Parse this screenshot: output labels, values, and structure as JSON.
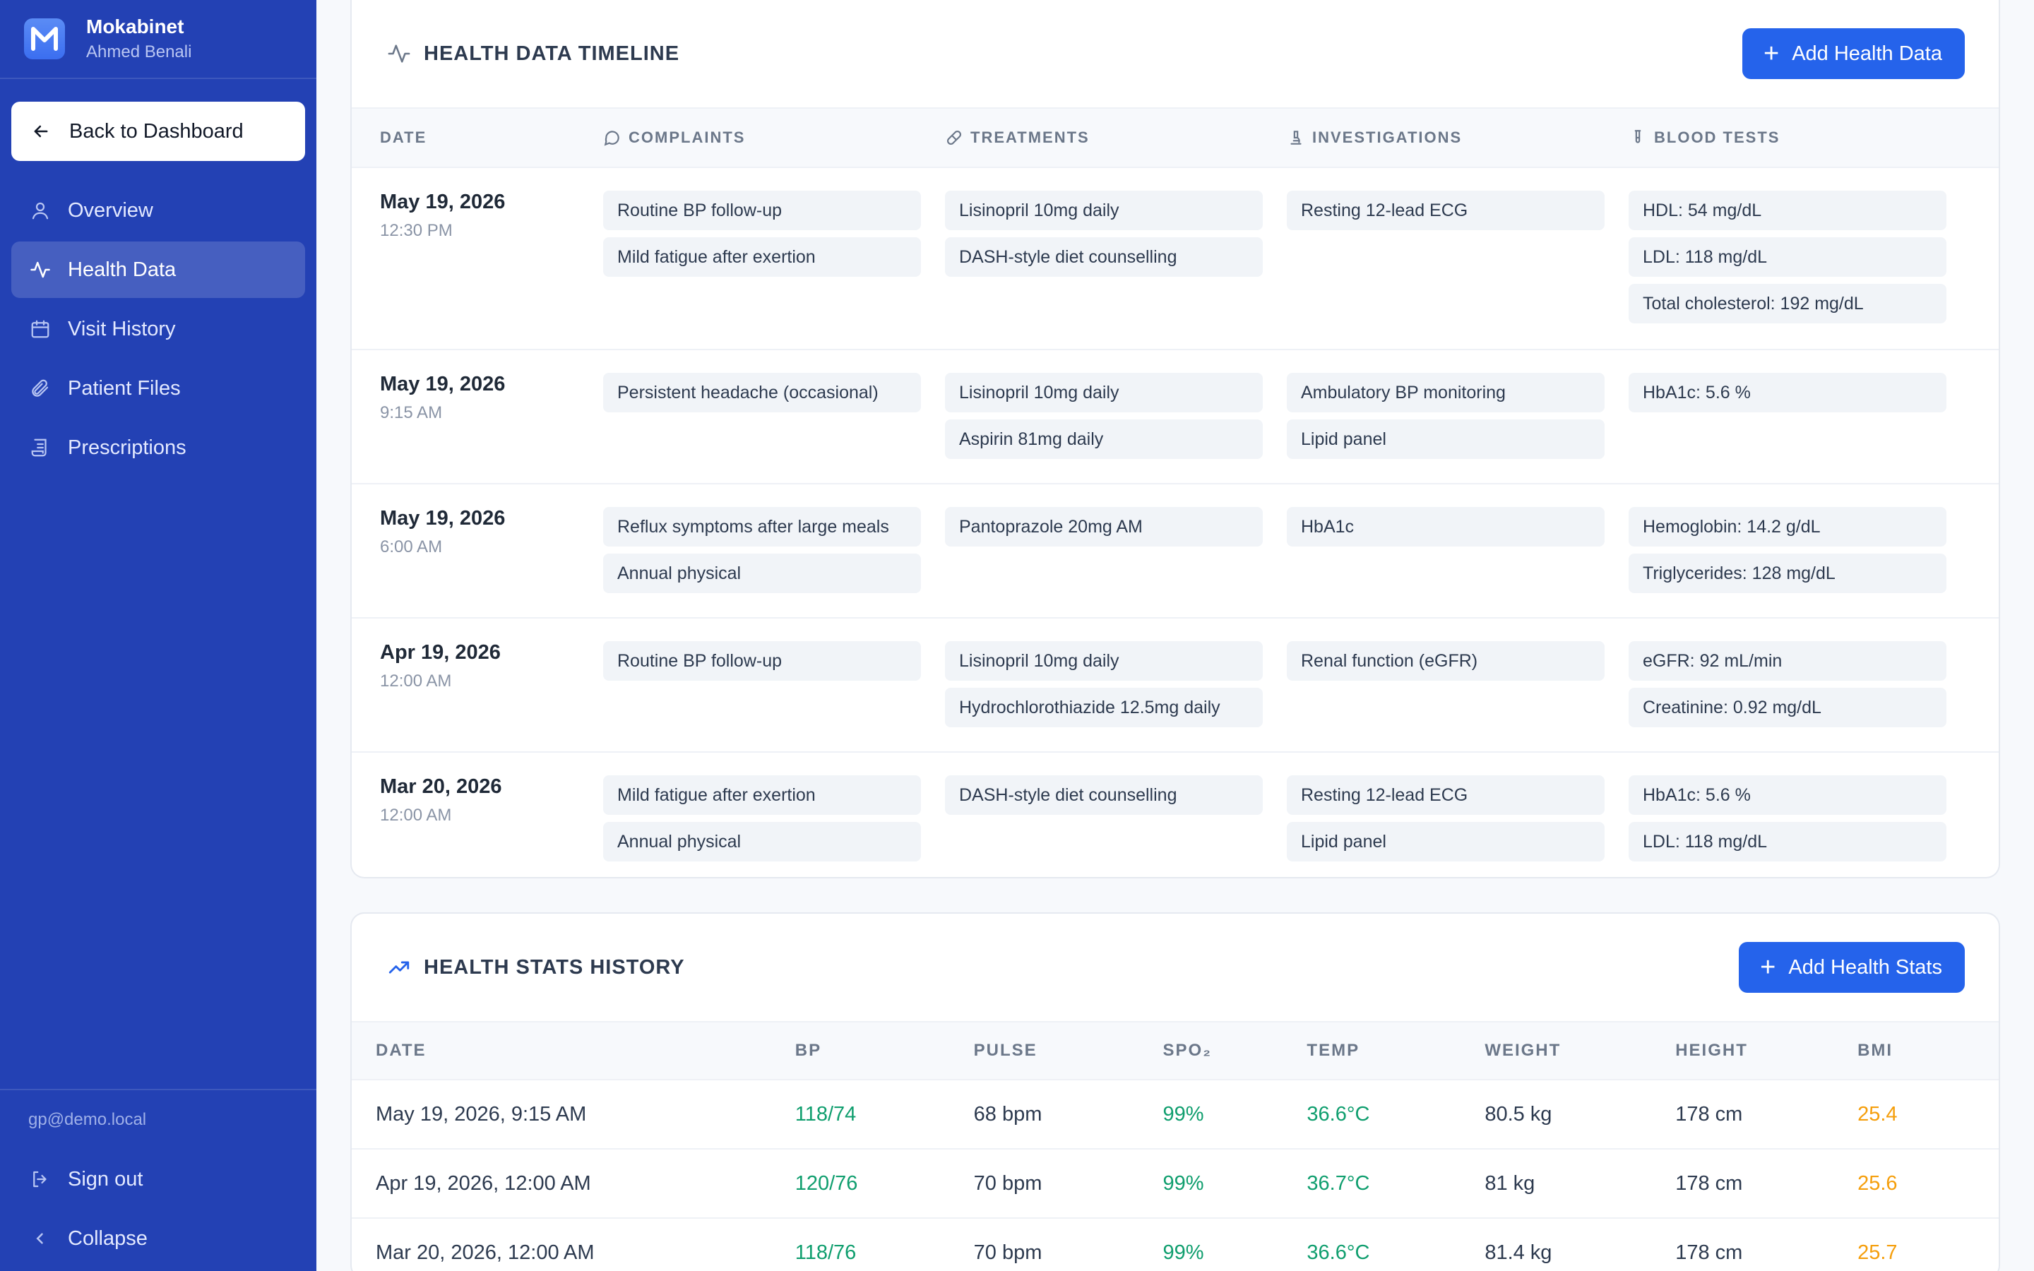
{
  "app": {
    "name": "Mokabinet",
    "user": "Ahmed Benali"
  },
  "sidebar": {
    "back_label": "Back to Dashboard",
    "items": [
      {
        "label": "Overview",
        "icon": "user-icon"
      },
      {
        "label": "Health Data",
        "icon": "activity-icon"
      },
      {
        "label": "Visit History",
        "icon": "calendar-icon"
      },
      {
        "label": "Patient Files",
        "icon": "paperclip-icon"
      },
      {
        "label": "Prescriptions",
        "icon": "scroll-icon"
      }
    ],
    "email": "gp@demo.local",
    "sign_out": "Sign out",
    "collapse": "Collapse"
  },
  "timeline": {
    "title": "HEALTH DATA TIMELINE",
    "add_label": "Add Health Data",
    "headers": {
      "date": "DATE",
      "complaints": "COMPLAINTS",
      "treatments": "TREATMENTS",
      "investigations": "INVESTIGATIONS",
      "blood_tests": "BLOOD TESTS"
    },
    "rows": [
      {
        "date": "May 19, 2026",
        "time": "12:30 PM",
        "complaints": [
          "Routine BP follow-up",
          "Mild fatigue after exertion"
        ],
        "treatments": [
          "Lisinopril 10mg daily",
          "DASH-style diet counselling"
        ],
        "investigations": [
          "Resting 12-lead ECG"
        ],
        "blood_tests": [
          "HDL: 54 mg/dL",
          "LDL: 118 mg/dL",
          "Total cholesterol: 192 mg/dL"
        ]
      },
      {
        "date": "May 19, 2026",
        "time": "9:15 AM",
        "complaints": [
          "Persistent headache (occasional)"
        ],
        "treatments": [
          "Lisinopril 10mg daily",
          "Aspirin 81mg daily"
        ],
        "investigations": [
          "Ambulatory BP monitoring",
          "Lipid panel"
        ],
        "blood_tests": [
          "HbA1c: 5.6 %"
        ]
      },
      {
        "date": "May 19, 2026",
        "time": "6:00 AM",
        "complaints": [
          "Reflux symptoms after large meals",
          "Annual physical"
        ],
        "treatments": [
          "Pantoprazole 20mg AM"
        ],
        "investigations": [
          "HbA1c"
        ],
        "blood_tests": [
          "Hemoglobin: 14.2 g/dL",
          "Triglycerides: 128 mg/dL"
        ]
      },
      {
        "date": "Apr 19, 2026",
        "time": "12:00 AM",
        "complaints": [
          "Routine BP follow-up"
        ],
        "treatments": [
          "Lisinopril 10mg daily",
          "Hydrochlorothiazide 12.5mg daily"
        ],
        "investigations": [
          "Renal function (eGFR)"
        ],
        "blood_tests": [
          "eGFR: 92 mL/min",
          "Creatinine: 0.92 mg/dL"
        ]
      },
      {
        "date": "Mar 20, 2026",
        "time": "12:00 AM",
        "complaints": [
          "Mild fatigue after exertion",
          "Annual physical"
        ],
        "treatments": [
          "DASH-style diet counselling"
        ],
        "investigations": [
          "Resting 12-lead ECG",
          "Lipid panel"
        ],
        "blood_tests": [
          "HbA1c: 5.6 %",
          "LDL: 118 mg/dL"
        ]
      }
    ]
  },
  "stats": {
    "title": "HEALTH STATS HISTORY",
    "add_label": "Add Health Stats",
    "headers": {
      "date": "DATE",
      "bp": "BP",
      "pulse": "PULSE",
      "spo2": "SPO₂",
      "temp": "TEMP",
      "weight": "WEIGHT",
      "height": "HEIGHT",
      "bmi": "BMI"
    },
    "rows": [
      {
        "date": "May 19, 2026, 9:15 AM",
        "bp": "118/74",
        "pulse": "68 bpm",
        "spo2": "99%",
        "temp": "36.6°C",
        "weight": "80.5 kg",
        "height": "178 cm",
        "bmi": "25.4"
      },
      {
        "date": "Apr 19, 2026, 12:00 AM",
        "bp": "120/76",
        "pulse": "70 bpm",
        "spo2": "99%",
        "temp": "36.7°C",
        "weight": "81 kg",
        "height": "178 cm",
        "bmi": "25.6"
      },
      {
        "date": "Mar 20, 2026, 12:00 AM",
        "bp": "118/76",
        "pulse": "70 bpm",
        "spo2": "99%",
        "temp": "36.6°C",
        "weight": "81.4 kg",
        "height": "178 cm",
        "bmi": "25.7"
      }
    ]
  },
  "colors": {
    "sidebar": "#2341b4",
    "primary": "#2563eb",
    "good": "#0f9e6e",
    "warn": "#f59e0b"
  }
}
